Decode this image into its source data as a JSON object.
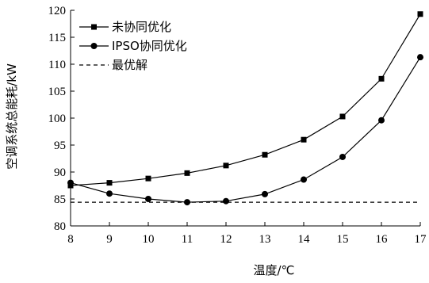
{
  "chart_data": {
    "type": "line",
    "xlabel": "温度/℃",
    "ylabel": "空调系统总能耗/kW",
    "x": [
      8,
      9,
      10,
      11,
      12,
      13,
      14,
      15,
      16,
      17
    ],
    "xlim": [
      8,
      17
    ],
    "ylim": [
      80,
      120
    ],
    "yticks": [
      80,
      85,
      90,
      95,
      100,
      105,
      110,
      115,
      120
    ],
    "xticks": [
      8,
      9,
      10,
      11,
      12,
      13,
      14,
      15,
      16,
      17
    ],
    "grid": false,
    "legend_position": "top-left",
    "series": [
      {
        "name": "未协同优化",
        "marker": "square",
        "line_style": "solid",
        "values": [
          87.5,
          88.0,
          88.8,
          89.8,
          91.2,
          93.2,
          96.0,
          100.3,
          107.3,
          119.3
        ]
      },
      {
        "name": "IPSO协同优化",
        "marker": "circle",
        "line_style": "solid",
        "values": [
          88.0,
          86.0,
          85.0,
          84.4,
          84.6,
          85.9,
          88.6,
          92.8,
          99.6,
          111.3
        ]
      },
      {
        "name": "最优解",
        "marker": "none",
        "line_style": "dashed",
        "values": [
          84.4,
          84.4,
          84.4,
          84.4,
          84.4,
          84.4,
          84.4,
          84.4,
          84.4,
          84.4
        ]
      }
    ],
    "colors": {
      "lines": "#000000",
      "background": "#ffffff"
    }
  }
}
